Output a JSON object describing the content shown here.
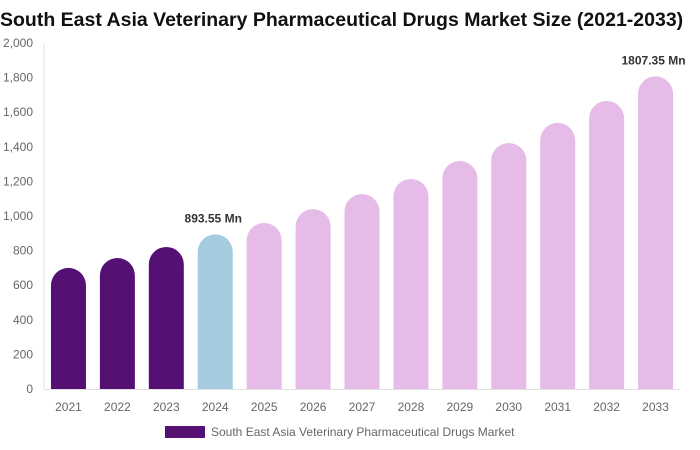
{
  "chart_data": {
    "type": "bar",
    "title": "South East Asia Veterinary Pharmaceutical Drugs Market Size (2021-2033)",
    "categories": [
      "2021",
      "2022",
      "2023",
      "2024",
      "2025",
      "2026",
      "2027",
      "2028",
      "2029",
      "2030",
      "2031",
      "2032",
      "2033"
    ],
    "series": [
      {
        "name": "South East Asia Veterinary Pharmaceutical Drugs Market",
        "values": [
          700,
          757,
          821,
          893.55,
          960,
          1040,
          1127,
          1214,
          1318,
          1422,
          1538,
          1665,
          1807.35
        ]
      }
    ],
    "bar_colors": [
      "#541173",
      "#541173",
      "#541173",
      "#a4cbde",
      "#e6bbe8",
      "#e6bbe8",
      "#e6bbe8",
      "#e6bbe8",
      "#e6bbe8",
      "#e6bbe8",
      "#e6bbe8",
      "#e6bbe8",
      "#e6bbe8"
    ],
    "data_labels": [
      {
        "category": "2024",
        "text": "893.55 Mn"
      },
      {
        "category": "2033",
        "text": "1807.35 Mn"
      }
    ],
    "yticks": [
      "0",
      "200",
      "400",
      "600",
      "800",
      "1,000",
      "1,200",
      "1,400",
      "1,600",
      "1,800",
      "2,000"
    ],
    "ytick_values": [
      0,
      200,
      400,
      600,
      800,
      1000,
      1200,
      1400,
      1600,
      1800,
      2000
    ],
    "ylim": [
      0,
      2000
    ],
    "xlabel": "",
    "ylabel": "",
    "grid": false,
    "legend_position": "bottom",
    "legend_color": "#541173"
  }
}
